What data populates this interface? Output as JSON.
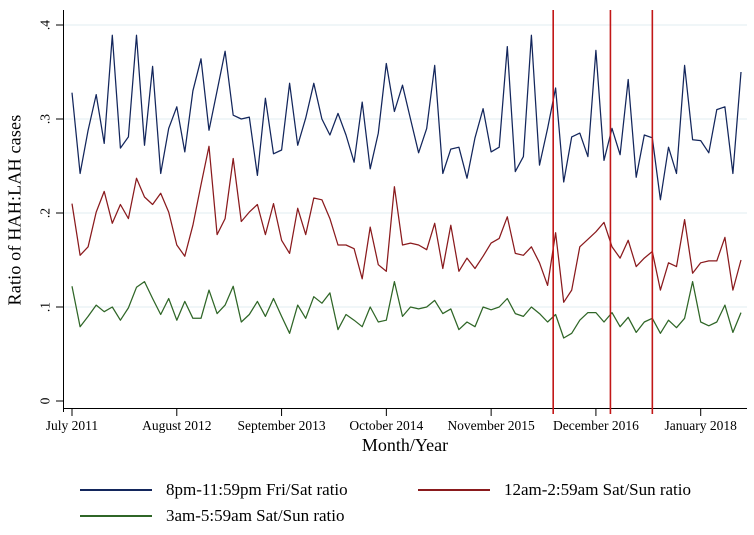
{
  "chart_data": {
    "type": "line",
    "title": "",
    "xlabel": "Month/Year",
    "ylabel": "Ratio of HAH:LAH cases",
    "x_unit": "month",
    "n_points": 84,
    "x_range_labels": [
      "July 2011",
      "June 2018"
    ],
    "x_ticks": [
      {
        "index": 0,
        "label": "July 2011"
      },
      {
        "index": 13,
        "label": "August 2012"
      },
      {
        "index": 26,
        "label": "September 2013"
      },
      {
        "index": 39,
        "label": "October 2014"
      },
      {
        "index": 52,
        "label": "November 2015"
      },
      {
        "index": 65,
        "label": "December 2016"
      },
      {
        "index": 78,
        "label": "January 2018"
      }
    ],
    "y_ticks": [
      {
        "value": 0,
        "label": "0"
      },
      {
        "value": 0.1,
        "label": ".1"
      },
      {
        "value": 0.2,
        "label": ".2"
      },
      {
        "value": 0.3,
        "label": ".3"
      },
      {
        "value": 0.4,
        "label": ".4"
      }
    ],
    "ylim": [
      0,
      0.42
    ],
    "grid": "horizontal",
    "colors": {
      "grid": "#e2eef2",
      "axis": "#000000"
    },
    "series": [
      {
        "name": "8pm-11:59pm Fri/Sat ratio",
        "color": "#13265c",
        "values": [
          0.328,
          0.242,
          0.288,
          0.326,
          0.274,
          0.389,
          0.269,
          0.281,
          0.389,
          0.272,
          0.356,
          0.242,
          0.29,
          0.313,
          0.265,
          0.33,
          0.364,
          0.288,
          0.33,
          0.372,
          0.304,
          0.3,
          0.302,
          0.24,
          0.322,
          0.263,
          0.267,
          0.338,
          0.272,
          0.301,
          0.338,
          0.3,
          0.283,
          0.306,
          0.283,
          0.254,
          0.318,
          0.247,
          0.285,
          0.359,
          0.308,
          0.336,
          0.3,
          0.264,
          0.29,
          0.357,
          0.242,
          0.268,
          0.27,
          0.237,
          0.28,
          0.311,
          0.265,
          0.27,
          0.377,
          0.244,
          0.26,
          0.389,
          0.251,
          0.29,
          0.333,
          0.233,
          0.281,
          0.285,
          0.26,
          0.373,
          0.256,
          0.29,
          0.262,
          0.342,
          0.238,
          0.283,
          0.28,
          0.214,
          0.27,
          0.242,
          0.357,
          0.278,
          0.277,
          0.264,
          0.31,
          0.313,
          0.242,
          0.35
        ]
      },
      {
        "name": "12am-2:59am Sat/Sun ratio",
        "color": "#8a1a1d",
        "values": [
          0.21,
          0.155,
          0.164,
          0.201,
          0.223,
          0.189,
          0.209,
          0.194,
          0.237,
          0.217,
          0.209,
          0.221,
          0.201,
          0.166,
          0.154,
          0.187,
          0.23,
          0.271,
          0.177,
          0.194,
          0.258,
          0.191,
          0.201,
          0.209,
          0.177,
          0.21,
          0.171,
          0.157,
          0.205,
          0.177,
          0.216,
          0.214,
          0.194,
          0.166,
          0.166,
          0.162,
          0.13,
          0.185,
          0.145,
          0.138,
          0.228,
          0.166,
          0.168,
          0.166,
          0.161,
          0.189,
          0.141,
          0.187,
          0.138,
          0.152,
          0.141,
          0.154,
          0.168,
          0.173,
          0.196,
          0.157,
          0.155,
          0.164,
          0.147,
          0.123,
          0.179,
          0.105,
          0.118,
          0.164,
          0.172,
          0.18,
          0.19,
          0.164,
          0.152,
          0.171,
          0.143,
          0.152,
          0.159,
          0.118,
          0.147,
          0.143,
          0.193,
          0.136,
          0.147,
          0.149,
          0.149,
          0.174,
          0.118,
          0.15
        ]
      },
      {
        "name": "3am-5:59am Sat/Sun ratio",
        "color": "#2f6627",
        "values": [
          0.122,
          0.079,
          0.09,
          0.102,
          0.095,
          0.1,
          0.086,
          0.099,
          0.121,
          0.127,
          0.109,
          0.092,
          0.109,
          0.086,
          0.106,
          0.088,
          0.088,
          0.118,
          0.093,
          0.102,
          0.122,
          0.084,
          0.092,
          0.106,
          0.09,
          0.109,
          0.09,
          0.072,
          0.102,
          0.088,
          0.111,
          0.104,
          0.115,
          0.076,
          0.092,
          0.086,
          0.079,
          0.1,
          0.084,
          0.086,
          0.127,
          0.09,
          0.1,
          0.098,
          0.1,
          0.107,
          0.093,
          0.098,
          0.076,
          0.084,
          0.079,
          0.1,
          0.097,
          0.1,
          0.109,
          0.093,
          0.09,
          0.1,
          0.093,
          0.084,
          0.092,
          0.067,
          0.072,
          0.086,
          0.094,
          0.094,
          0.084,
          0.094,
          0.079,
          0.089,
          0.073,
          0.084,
          0.088,
          0.072,
          0.086,
          0.078,
          0.088,
          0.127,
          0.084,
          0.08,
          0.084,
          0.102,
          0.073,
          0.094
        ]
      }
    ],
    "reference_lines": {
      "color": "#c21717",
      "month_indices": [
        59.7,
        66.8,
        72.0
      ]
    },
    "legend": {
      "position": "bottom",
      "entries": [
        "8pm-11:59pm Fri/Sat ratio",
        "12am-2:59am Sat/Sun ratio",
        "3am-5:59am Sat/Sun ratio"
      ]
    }
  }
}
